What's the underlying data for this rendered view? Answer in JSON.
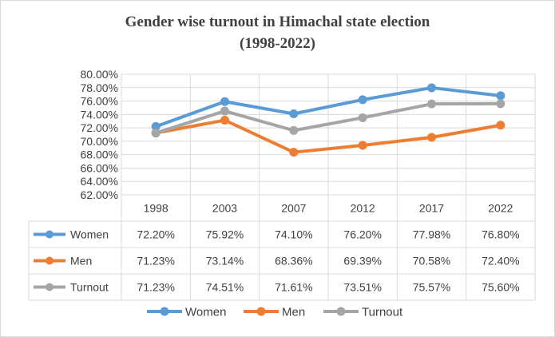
{
  "chart_data": {
    "type": "line",
    "title_line1": "Gender wise turnout in Himachal state election",
    "title_line2": "(1998-2022)",
    "categories": [
      "1998",
      "2003",
      "2007",
      "2012",
      "2017",
      "2022"
    ],
    "ylim": [
      62,
      80
    ],
    "ytick_step": 2,
    "ytick_labels": [
      "62.00%",
      "64.00%",
      "66.00%",
      "68.00%",
      "70.00%",
      "72.00%",
      "74.00%",
      "76.00%",
      "78.00%",
      "80.00%"
    ],
    "grid": true,
    "legend_position": "bottom",
    "series": [
      {
        "name": "Women",
        "color": "#5b9bd5",
        "values": [
          72.2,
          75.92,
          74.1,
          76.2,
          77.98,
          76.8
        ],
        "labels": [
          "72.20%",
          "75.92%",
          "74.10%",
          "76.20%",
          "77.98%",
          "76.80%"
        ]
      },
      {
        "name": "Men",
        "color": "#ed7d31",
        "values": [
          71.23,
          73.14,
          68.36,
          69.39,
          70.58,
          72.4
        ],
        "labels": [
          "71.23%",
          "73.14%",
          "68.36%",
          "69.39%",
          "70.58%",
          "72.40%"
        ]
      },
      {
        "name": "Turnout",
        "color": "#a5a5a5",
        "values": [
          71.23,
          74.51,
          71.61,
          73.51,
          75.57,
          75.6
        ],
        "labels": [
          "71.23%",
          "74.51%",
          "71.61%",
          "73.51%",
          "75.57%",
          "75.60%"
        ]
      }
    ]
  }
}
